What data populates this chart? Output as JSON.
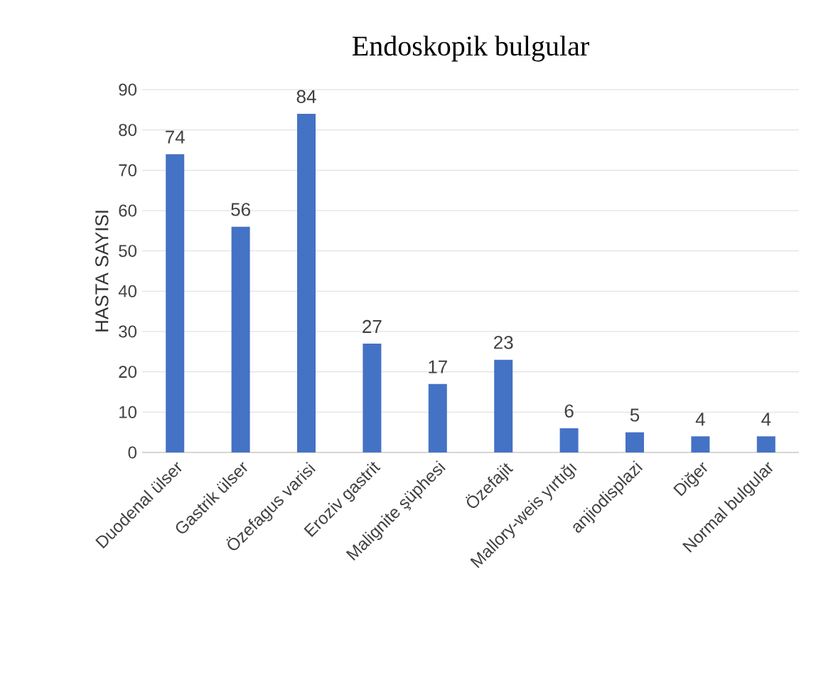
{
  "chart_data": {
    "type": "bar",
    "title": "Endoskopik bulgular",
    "ylabel": "HASTA SAYISI",
    "categories": [
      "Duodenal ülser",
      "Gastrik ülser",
      "Özefagus varisi",
      "Eroziv gastrit",
      "Malignite şüphesi",
      "Özefajit",
      "Mallory-weis yırtığı",
      "anjiodisplazi",
      "Diğer",
      "Normal bulgular"
    ],
    "values": [
      74,
      56,
      84,
      27,
      17,
      23,
      6,
      5,
      4,
      4
    ],
    "color": "#4472c4",
    "ylim": [
      0,
      90
    ],
    "yticks": [
      0,
      10,
      20,
      30,
      40,
      50,
      60,
      70,
      80,
      90
    ],
    "grid": "y",
    "data_labels": true
  }
}
